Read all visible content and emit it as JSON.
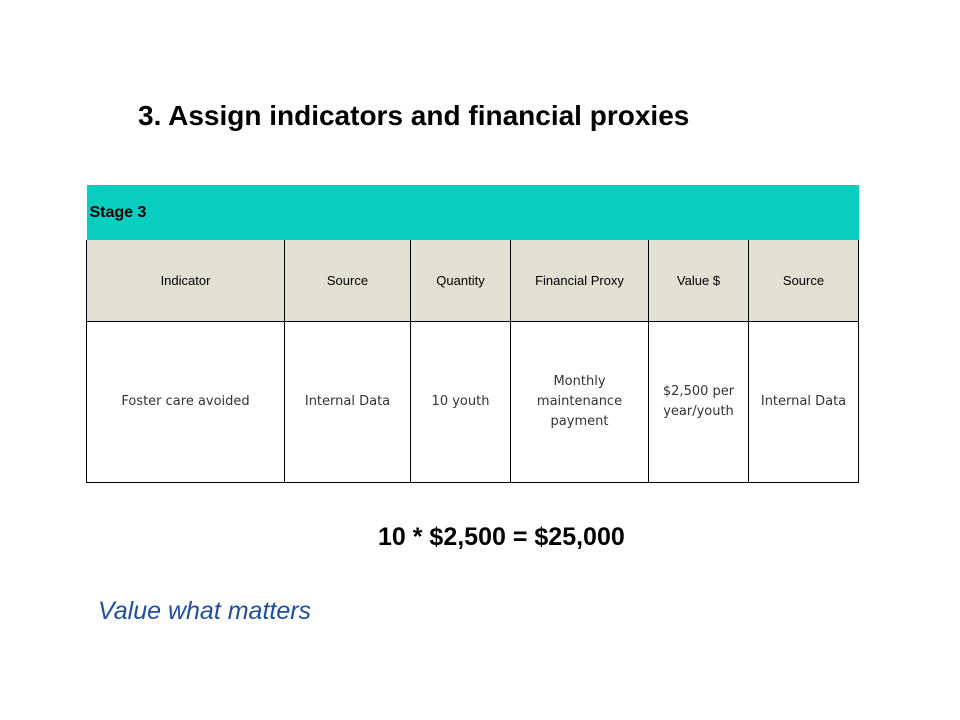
{
  "slide": {
    "title": "3. Assign indicators and financial proxies",
    "equation": "10 * $2,500 = $25,000",
    "tagline": "Value what matters"
  },
  "table": {
    "stage_label": "Stage 3",
    "columns": [
      "Indicator",
      "Source",
      "Quantity",
      "Financial Proxy",
      "Value $",
      "Source"
    ],
    "rows": [
      [
        "Foster care avoided",
        "Internal Data",
        "10 youth",
        "Monthly maintenance payment",
        "$2,500 per year/youth",
        "Internal Data"
      ]
    ]
  },
  "colors": {
    "stage_header": "#09cdc0",
    "column_header": "#e0e1d3",
    "tagline": "#1f4e9e"
  }
}
